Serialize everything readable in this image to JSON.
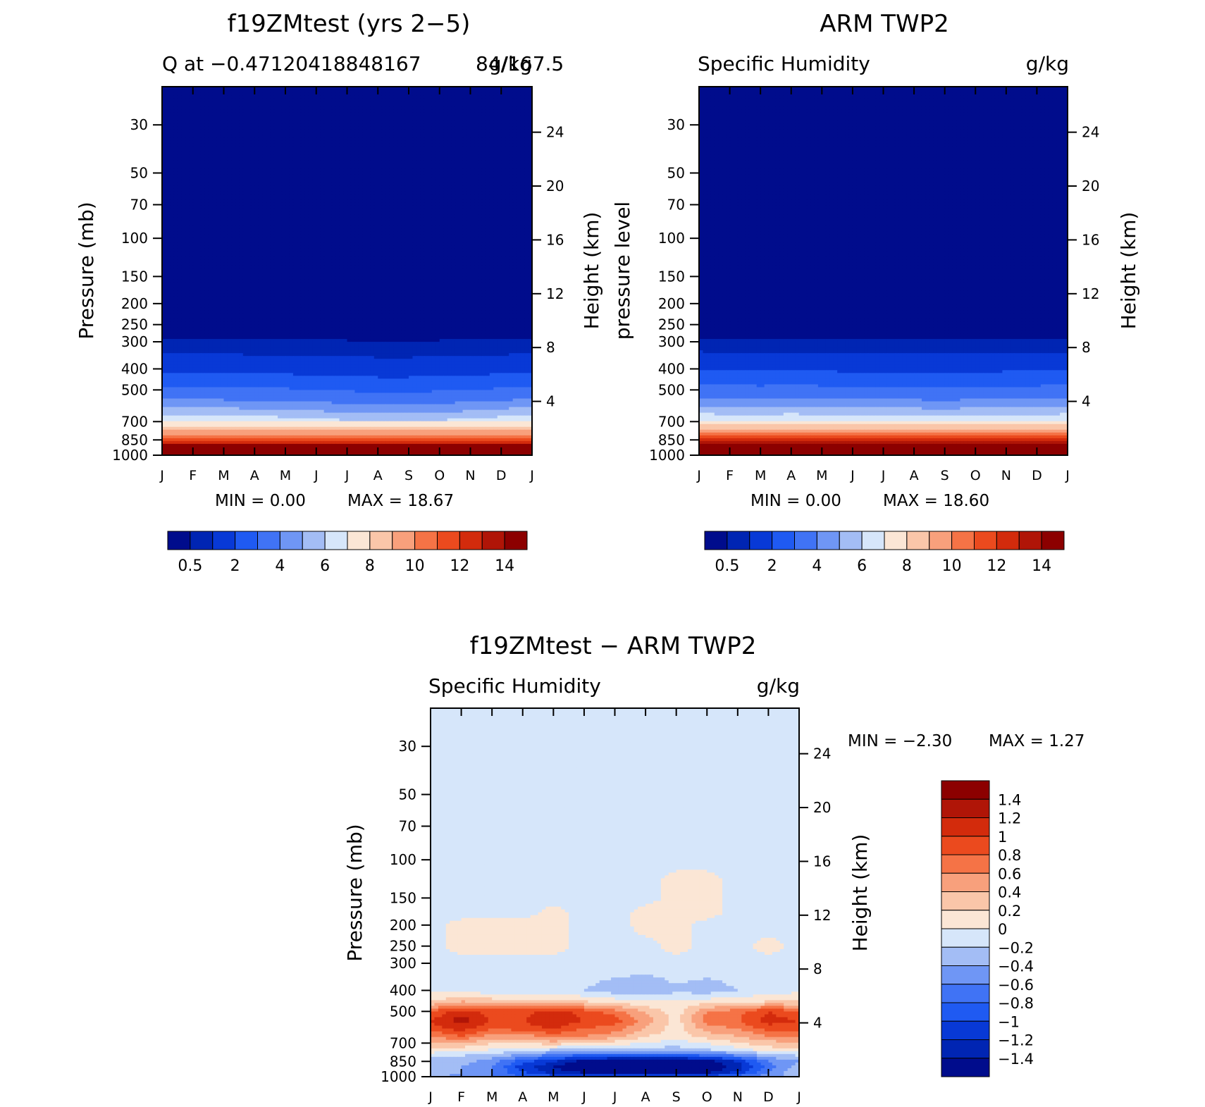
{
  "chart_data": [
    {
      "type": "heatmap",
      "title": "f19ZMtest (yrs 2−5)",
      "subtitle_left": "Q at −0.47120418848167",
      "subtitle_overlap": "84/167.5",
      "subtitle_right": "g/kg",
      "ylabel": "Pressure (mb)",
      "ylabel_right": "Height (km)",
      "x_ticks": [
        "J",
        "F",
        "M",
        "A",
        "M",
        "J",
        "J",
        "A",
        "S",
        "O",
        "N",
        "D",
        "J"
      ],
      "y_ticks": [
        30,
        50,
        70,
        100,
        150,
        200,
        250,
        300,
        400,
        500,
        700,
        850,
        1000
      ],
      "ylim": [
        1000,
        20
      ],
      "height_ticks": [
        24,
        20,
        16,
        12,
        8,
        4
      ],
      "height_scale_km": 7,
      "min_text": "MIN =    0.00",
      "max_text": "MAX =    18.67",
      "min": 0.0,
      "max": 18.67,
      "levels": [
        0.5,
        1,
        2,
        3,
        4,
        5,
        6,
        7,
        8,
        9,
        10,
        11,
        12,
        13,
        14
      ],
      "level_labels": [
        "0.5",
        "2",
        "4",
        "6",
        "8",
        "10",
        "12",
        "14"
      ],
      "level_label_index": [
        0,
        2,
        4,
        6,
        8,
        10,
        12,
        14
      ],
      "colors": [
        "#000c8c",
        "#0025b3",
        "#0839d6",
        "#1f5af2",
        "#4073f5",
        "#6f96f5",
        "#a3bdf5",
        "#d6e6fa",
        "#fbe6d5",
        "#fac6a9",
        "#f8a07c",
        "#f57346",
        "#eb4a1e",
        "#d32b0c",
        "#b01507",
        "#8c0000"
      ],
      "climatology": {
        "pressure": [
          1000,
          900,
          850,
          800,
          750,
          700,
          650,
          600,
          550,
          500,
          450,
          400,
          350,
          300,
          250
        ],
        "q": [
          17.9,
          14.0,
          12.0,
          10.0,
          8.5,
          7.0,
          6.0,
          5.0,
          4.0,
          3.3,
          2.5,
          1.8,
          1.1,
          0.6,
          0.2
        ],
        "monthly_factor": [
          1.0,
          1.0,
          1.03,
          1.04,
          1.06,
          1.1,
          1.13,
          1.16,
          1.16,
          1.13,
          1.1,
          1.05,
          1.0
        ]
      }
    },
    {
      "type": "heatmap",
      "title": "ARM TWP2",
      "subtitle_left": "Specific Humidity",
      "subtitle_right": "g/kg",
      "ylabel": "pressure level",
      "ylabel_right": "Height (km)",
      "x_ticks": [
        "J",
        "F",
        "M",
        "A",
        "M",
        "J",
        "J",
        "A",
        "S",
        "O",
        "N",
        "D",
        "J"
      ],
      "y_ticks": [
        30,
        50,
        70,
        100,
        150,
        200,
        250,
        300,
        400,
        500,
        700,
        850,
        1000
      ],
      "ylim": [
        1000,
        20
      ],
      "height_ticks": [
        24,
        20,
        16,
        12,
        8,
        4
      ],
      "height_scale_km": 7,
      "min_text": "MIN =    0.00",
      "max_text": "MAX =    18.60",
      "min": 0.0,
      "max": 18.6,
      "levels": [
        0.5,
        1,
        2,
        3,
        4,
        5,
        6,
        7,
        8,
        9,
        10,
        11,
        12,
        13,
        14
      ],
      "level_labels": [
        "0.5",
        "2",
        "4",
        "6",
        "8",
        "10",
        "12",
        "14"
      ],
      "level_label_index": [
        0,
        2,
        4,
        6,
        8,
        10,
        12,
        14
      ],
      "colors": [
        "#000c8c",
        "#0025b3",
        "#0839d6",
        "#1f5af2",
        "#4073f5",
        "#6f96f5",
        "#a3bdf5",
        "#d6e6fa",
        "#fbe6d5",
        "#fac6a9",
        "#f8a07c",
        "#f57346",
        "#eb4a1e",
        "#d32b0c",
        "#b01507",
        "#8c0000"
      ],
      "climatology": {
        "pressure": [
          1000,
          900,
          850,
          800,
          750,
          700,
          650,
          600,
          550,
          500,
          450,
          400,
          350,
          300,
          250
        ],
        "q": [
          18.0,
          14.2,
          12.2,
          10.2,
          8.6,
          7.2,
          6.1,
          5.1,
          4.1,
          3.4,
          2.6,
          1.9,
          1.2,
          0.6,
          0.2
        ],
        "monthly_factor": [
          1.0,
          1.01,
          1.02,
          1.0,
          1.02,
          1.04,
          1.04,
          1.05,
          1.07,
          1.04,
          1.03,
          1.02,
          1.0
        ]
      }
    },
    {
      "type": "heatmap",
      "title": "f19ZMtest − ARM TWP2",
      "subtitle_left": "Specific Humidity",
      "subtitle_right": "g/kg",
      "ylabel": "Pressure (mb)",
      "ylabel_right": "Height (km)",
      "x_ticks": [
        "J",
        "F",
        "M",
        "A",
        "M",
        "J",
        "J",
        "A",
        "S",
        "O",
        "N",
        "D",
        "J"
      ],
      "y_ticks": [
        30,
        50,
        70,
        100,
        150,
        200,
        250,
        300,
        400,
        500,
        700,
        850,
        1000
      ],
      "ylim": [
        1000,
        20
      ],
      "height_ticks": [
        24,
        20,
        16,
        12,
        8,
        4
      ],
      "height_scale_km": 7,
      "min_text": "MIN =   −2.30",
      "max_text": "MAX =    1.27",
      "min": -2.3,
      "max": 1.27,
      "levels": [
        -1.4,
        -1.2,
        -1,
        -0.8,
        -0.6,
        -0.4,
        -0.2,
        0,
        0.2,
        0.4,
        0.6,
        0.8,
        1,
        1.2,
        1.4
      ],
      "level_labels": [
        "1.4",
        "1.2",
        "1",
        "0.8",
        "0.6",
        "0.4",
        "0.2",
        "0",
        "−0.2",
        "−0.4",
        "−0.6",
        "−0.8",
        "−1",
        "−1.2",
        "−1.4"
      ],
      "colors": [
        "#000c8c",
        "#0025b3",
        "#0839d6",
        "#1f5af2",
        "#4073f5",
        "#6f96f5",
        "#a3bdf5",
        "#d6e6fa",
        "#fbe6d5",
        "#fac6a9",
        "#f8a07c",
        "#f57346",
        "#eb4a1e",
        "#d32b0c",
        "#b01507",
        "#8c0000"
      ],
      "diff_field": {
        "pressure": [
          1000,
          950,
          900,
          850,
          800,
          750,
          700,
          650,
          600,
          550,
          500,
          450,
          400,
          350,
          300,
          250,
          200,
          175,
          150,
          125,
          100,
          30
        ],
        "months": [
          0,
          1,
          2,
          3,
          4,
          5,
          6,
          7,
          8,
          9,
          10,
          11,
          12
        ],
        "values": [
          [
            -0.3,
            -0.5,
            -0.6,
            -0.8,
            -0.9,
            -0.9,
            -1.0,
            -1.0,
            -1.0,
            -0.9,
            -0.7,
            -0.5,
            -0.3
          ],
          [
            -0.2,
            -0.4,
            -0.6,
            -1.0,
            -1.3,
            -1.5,
            -1.6,
            -1.6,
            -1.6,
            -1.5,
            -1.2,
            -0.6,
            -0.2
          ],
          [
            -0.3,
            -0.4,
            -0.6,
            -1.1,
            -1.4,
            -1.6,
            -1.7,
            -1.8,
            -1.8,
            -1.6,
            -1.3,
            -0.7,
            -0.3
          ],
          [
            -0.4,
            -0.3,
            -0.5,
            -0.9,
            -1.2,
            -1.5,
            -1.6,
            -1.7,
            -1.7,
            -1.5,
            -1.2,
            -0.6,
            -0.4
          ],
          [
            -0.2,
            -0.2,
            -0.3,
            -0.5,
            -0.7,
            -0.9,
            -0.9,
            -0.9,
            -0.9,
            -0.8,
            -0.6,
            -0.3,
            -0.2
          ],
          [
            0.2,
            0.1,
            0.0,
            -0.1,
            -0.2,
            -0.3,
            -0.3,
            -0.3,
            -0.3,
            -0.2,
            -0.1,
            0.1,
            0.2
          ],
          [
            0.4,
            0.4,
            0.2,
            0.2,
            0.3,
            0.2,
            0.1,
            0.0,
            -0.1,
            0.0,
            0.2,
            0.3,
            0.4
          ],
          [
            0.6,
            0.8,
            0.5,
            0.5,
            0.7,
            0.6,
            0.5,
            0.2,
            0.1,
            0.3,
            0.4,
            0.6,
            0.6
          ],
          [
            0.9,
            1.1,
            0.8,
            0.9,
            1.0,
            0.8,
            0.7,
            0.4,
            0.1,
            0.5,
            0.6,
            0.9,
            0.9
          ],
          [
            1.0,
            1.3,
            1.0,
            1.0,
            1.2,
            1.0,
            0.9,
            0.5,
            0.1,
            0.7,
            0.8,
            1.1,
            1.0
          ],
          [
            0.8,
            1.1,
            0.9,
            0.9,
            1.1,
            0.9,
            0.7,
            0.4,
            0.1,
            0.6,
            0.7,
            1.0,
            0.8
          ],
          [
            0.2,
            0.4,
            0.3,
            0.3,
            0.3,
            0.2,
            0.1,
            0.0,
            0.0,
            0.1,
            0.1,
            0.2,
            0.2
          ],
          [
            -0.05,
            -0.1,
            -0.1,
            -0.1,
            -0.15,
            -0.2,
            -0.3,
            -0.35,
            -0.25,
            -0.3,
            -0.2,
            -0.1,
            -0.05
          ],
          [
            -0.05,
            -0.05,
            -0.05,
            -0.05,
            -0.1,
            -0.15,
            -0.2,
            -0.25,
            -0.15,
            -0.2,
            -0.15,
            -0.05,
            -0.05
          ],
          [
            -0.05,
            -0.05,
            -0.05,
            -0.05,
            -0.05,
            -0.05,
            -0.05,
            -0.05,
            -0.05,
            -0.05,
            -0.05,
            -0.05,
            -0.05
          ],
          [
            -0.05,
            0.05,
            0.05,
            0.05,
            0.05,
            -0.05,
            -0.05,
            -0.05,
            0.05,
            -0.05,
            -0.05,
            0.05,
            -0.05
          ],
          [
            -0.05,
            0.05,
            0.05,
            0.05,
            0.05,
            -0.05,
            -0.05,
            0.05,
            0.05,
            -0.05,
            -0.05,
            -0.05,
            -0.05
          ],
          [
            -0.05,
            -0.05,
            -0.05,
            -0.05,
            0.05,
            -0.05,
            -0.05,
            0.05,
            0.05,
            0.05,
            -0.05,
            -0.05,
            -0.05
          ],
          [
            -0.05,
            -0.05,
            -0.05,
            -0.05,
            -0.05,
            -0.05,
            -0.05,
            -0.05,
            0.05,
            0.05,
            -0.05,
            -0.05,
            -0.05
          ],
          [
            -0.05,
            -0.05,
            -0.05,
            -0.05,
            -0.05,
            -0.05,
            -0.05,
            -0.05,
            0.05,
            0.05,
            -0.05,
            -0.05,
            -0.05
          ],
          [
            -0.05,
            -0.05,
            -0.05,
            -0.05,
            -0.05,
            -0.05,
            -0.05,
            -0.05,
            -0.05,
            -0.05,
            -0.05,
            -0.05,
            -0.05
          ],
          [
            -0.05,
            -0.05,
            -0.05,
            -0.05,
            -0.05,
            -0.05,
            -0.05,
            -0.05,
            -0.05,
            -0.05,
            -0.05,
            -0.05,
            -0.05
          ]
        ]
      }
    }
  ]
}
